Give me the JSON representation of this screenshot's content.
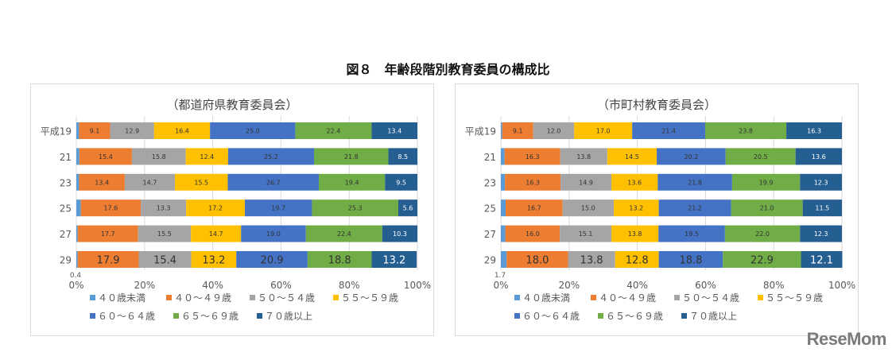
{
  "title": "図８　年齢段階別教育委員の構成比",
  "logo": "ReseMom",
  "chart_data": [
    {
      "type": "bar",
      "orientation": "horizontal-stacked-100",
      "title": "（都道府県教育委員会）",
      "categories": [
        "平成19",
        "21",
        "23",
        "25",
        "27",
        "29"
      ],
      "xlim": [
        0,
        100
      ],
      "x_ticks": [
        "0%",
        "20%",
        "40%",
        "60%",
        "80%",
        "100%"
      ],
      "grid": true,
      "legend_position": "bottom",
      "series": [
        {
          "name": "４０歳未満",
          "color": "#5B9BD5",
          "values": [
            0.8,
            0.9,
            0.8,
            1.3,
            0.4,
            0.4
          ],
          "labels": [
            "",
            "",
            "",
            "",
            "",
            "0.4"
          ]
        },
        {
          "name": "４０～４９歳",
          "color": "#ED7D31",
          "values": [
            9.1,
            15.4,
            13.4,
            17.6,
            17.7,
            17.9
          ]
        },
        {
          "name": "５０～５４歳",
          "color": "#A5A5A5",
          "values": [
            12.9,
            15.8,
            14.7,
            13.3,
            15.5,
            15.4
          ]
        },
        {
          "name": "５５～５９歳",
          "color": "#FFC000",
          "values": [
            16.4,
            12.4,
            15.5,
            17.2,
            14.7,
            13.2
          ]
        },
        {
          "name": "６０～６４歳",
          "color": "#4472C4",
          "values": [
            25.0,
            25.2,
            26.7,
            19.7,
            19.0,
            20.9
          ]
        },
        {
          "name": "６５～６９歳",
          "color": "#70AD47",
          "values": [
            22.4,
            21.8,
            19.4,
            25.3,
            22.4,
            18.8
          ]
        },
        {
          "name": "７０歳以上",
          "color": "#255E91",
          "values": [
            13.4,
            8.5,
            9.5,
            5.6,
            10.3,
            13.2
          ]
        }
      ]
    },
    {
      "type": "bar",
      "orientation": "horizontal-stacked-100",
      "title": "（市町村教育委員会）",
      "categories": [
        "平成19",
        "21",
        "23",
        "25",
        "27",
        "29"
      ],
      "xlim": [
        0,
        100
      ],
      "x_ticks": [
        "0%",
        "20%",
        "40%",
        "60%",
        "80%",
        "100%"
      ],
      "grid": true,
      "legend_position": "bottom",
      "series": [
        {
          "name": "４０歳未満",
          "color": "#5B9BD5",
          "values": [
            0.4,
            1.1,
            1.2,
            1.4,
            1.3,
            1.7
          ],
          "labels": [
            "",
            "",
            "",
            "",
            "",
            "1.7"
          ]
        },
        {
          "name": "４０～４９歳",
          "color": "#ED7D31",
          "values": [
            9.1,
            16.3,
            16.3,
            16.7,
            16.0,
            18.0
          ]
        },
        {
          "name": "５０～５４歳",
          "color": "#A5A5A5",
          "values": [
            12.0,
            13.8,
            14.9,
            15.0,
            15.1,
            13.8
          ]
        },
        {
          "name": "５５～５９歳",
          "color": "#FFC000",
          "values": [
            17.0,
            14.5,
            13.6,
            13.2,
            13.8,
            12.8
          ]
        },
        {
          "name": "６０～６４歳",
          "color": "#4472C4",
          "values": [
            21.4,
            20.2,
            21.8,
            21.2,
            19.5,
            18.8
          ]
        },
        {
          "name": "６５～６９歳",
          "color": "#70AD47",
          "values": [
            23.8,
            20.5,
            19.9,
            21.0,
            22.0,
            22.9
          ]
        },
        {
          "name": "７０歳以上",
          "color": "#255E91",
          "values": [
            16.3,
            13.6,
            12.3,
            11.5,
            12.3,
            12.1
          ]
        }
      ]
    }
  ]
}
